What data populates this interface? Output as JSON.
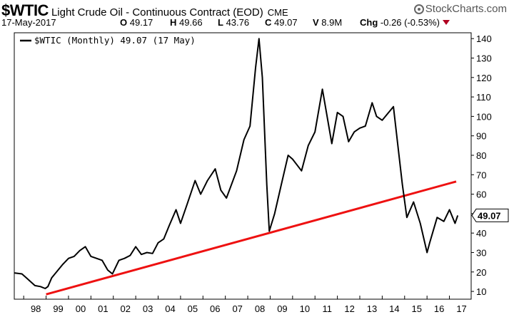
{
  "header": {
    "symbol": "$WTIC",
    "description": "Light Crude Oil - Continuous Contract (EOD)",
    "exchange": "CME",
    "brand": "StockCharts.com",
    "date": "17-May-2017",
    "open_label": "O",
    "open": "49.17",
    "high_label": "H",
    "high": "49.66",
    "low_label": "L",
    "low": "43.76",
    "close_label": "C",
    "close": "49.07",
    "volume_label": "V",
    "volume": "8.9M",
    "change_label": "Chg",
    "change": "-0.26 (-0.53%)"
  },
  "legend": {
    "text": "$WTIC (Monthly) 49.07 (17 May)"
  },
  "price_tag": "49.07",
  "colors": {
    "price_line": "#000000",
    "trend_line": "#ee1111",
    "down_arrow": "#b00020",
    "grid": "#e4e4e4"
  },
  "chart_data": {
    "type": "line",
    "series": [
      {
        "name": "$WTIC (Monthly)",
        "x": [
          1997.58,
          1997.92,
          1998.12,
          1998.5,
          1998.75,
          1998.96,
          1999.08,
          1999.25,
          1999.5,
          1999.75,
          2000.0,
          2000.25,
          2000.5,
          2000.75,
          2001.0,
          2001.25,
          2001.5,
          2001.75,
          2001.96,
          2002.25,
          2002.5,
          2002.75,
          2003.0,
          2003.25,
          2003.5,
          2003.75,
          2004.0,
          2004.25,
          2004.5,
          2004.8,
          2005.0,
          2005.3,
          2005.65,
          2005.9,
          2006.2,
          2006.55,
          2006.8,
          2007.05,
          2007.5,
          2007.83,
          2008.1,
          2008.35,
          2008.5,
          2008.65,
          2008.85,
          2008.96,
          2009.2,
          2009.5,
          2009.8,
          2010.0,
          2010.4,
          2010.7,
          2011.0,
          2011.33,
          2011.75,
          2012.0,
          2012.25,
          2012.5,
          2012.75,
          2013.0,
          2013.25,
          2013.55,
          2013.75,
          2014.0,
          2014.5,
          2014.75,
          2014.9,
          2015.1,
          2015.4,
          2015.7,
          2016.0,
          2016.12,
          2016.45,
          2016.75,
          2017.0,
          2017.25,
          2017.37
        ],
        "values": [
          19.5,
          19,
          17,
          13,
          12.5,
          11.5,
          12.5,
          17,
          20.5,
          24,
          27,
          28,
          31,
          33,
          28,
          27,
          26,
          21,
          19,
          26,
          27,
          28.5,
          33,
          29,
          30,
          29.5,
          35,
          37,
          44,
          52,
          45,
          55,
          67,
          60,
          67,
          73,
          62,
          58,
          72,
          88,
          95,
          125,
          140,
          120,
          65,
          41,
          50,
          65,
          80,
          78,
          72,
          85,
          92,
          114,
          86,
          102,
          100,
          87,
          92,
          94,
          95,
          107,
          100,
          98,
          105,
          80,
          65,
          48,
          56,
          45,
          30,
          35,
          48,
          46,
          52,
          45,
          49.07
        ]
      }
    ],
    "trendline": {
      "name": "",
      "x": [
        1999.0,
        2017.3
      ],
      "y": [
        8.5,
        66.5
      ]
    },
    "xticks": [
      1998,
      1999,
      2000,
      2001,
      2002,
      2003,
      2004,
      2005,
      2006,
      2007,
      2008,
      2009,
      2010,
      2011,
      2012,
      2013,
      2014,
      2015,
      2016,
      2017
    ],
    "xtick_labels": [
      "98",
      "99",
      "00",
      "01",
      "02",
      "03",
      "04",
      "05",
      "06",
      "07",
      "08",
      "09",
      "10",
      "11",
      "12",
      "13",
      "14",
      "15",
      "16",
      "17"
    ],
    "xlim": [
      1997.58,
      2017.97
    ],
    "yticks": [
      10,
      20,
      30,
      40,
      50,
      60,
      70,
      80,
      90,
      100,
      110,
      120,
      130,
      140
    ],
    "yticks_labels": [
      "10",
      "20",
      "30",
      "40",
      "50",
      "60",
      "70",
      "80",
      "90",
      "100",
      "110",
      "120",
      "130",
      "140"
    ],
    "ylim": [
      6,
      143
    ],
    "last_value": 49.07,
    "grid": false,
    "legend_position": "top-left",
    "title": "",
    "xlabel": "",
    "ylabel": ""
  }
}
